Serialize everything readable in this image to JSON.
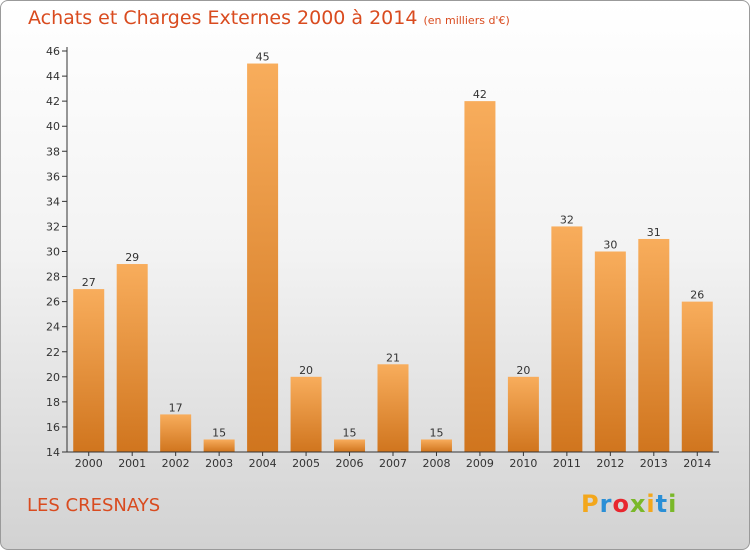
{
  "header": {
    "title": "Achats et Charges Externes 2000 à 2014",
    "subtitle": "(en milliers d'€)"
  },
  "footer": {
    "commune": "LES CRESNAYS",
    "brand": {
      "letters": [
        "P",
        "r",
        "o",
        "x",
        "i",
        "t",
        "i"
      ],
      "colors": [
        "#f3a71c",
        "#2a8fd6",
        "#e8262e",
        "#7ab829",
        "#f3a71c",
        "#2a8fd6",
        "#7ab829"
      ]
    }
  },
  "chart_data": {
    "type": "bar",
    "categories": [
      "2000",
      "2001",
      "2002",
      "2003",
      "2004",
      "2005",
      "2006",
      "2007",
      "2008",
      "2009",
      "2010",
      "2011",
      "2012",
      "2013",
      "2014"
    ],
    "values": [
      27,
      29,
      17,
      15,
      45,
      20,
      15,
      21,
      15,
      42,
      20,
      32,
      30,
      31,
      26
    ],
    "title": "Achats et Charges Externes 2000 à 2014",
    "subtitle": "(en milliers d'€)",
    "xlabel": "",
    "ylabel": "",
    "ylim": [
      14,
      46
    ],
    "yticks": [
      14,
      16,
      18,
      20,
      22,
      24,
      26,
      28,
      30,
      32,
      34,
      36,
      38,
      40,
      42,
      44,
      46
    ],
    "grid": false,
    "legend": "none",
    "colors": {
      "bar_light": "#f8ad5c",
      "bar_dark": "#d0751e",
      "axis": "#333333",
      "text": "#333333"
    }
  }
}
